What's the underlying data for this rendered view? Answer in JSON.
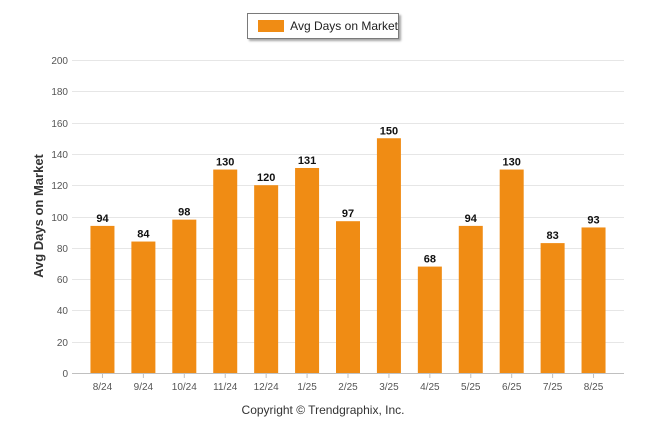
{
  "chart_data": {
    "type": "bar",
    "categories": [
      "8/24",
      "9/24",
      "10/24",
      "11/24",
      "12/24",
      "1/25",
      "2/25",
      "3/25",
      "4/25",
      "5/25",
      "6/25",
      "7/25",
      "8/25"
    ],
    "series": [
      {
        "name": "Avg Days on Market",
        "values": [
          94,
          84,
          98,
          130,
          120,
          131,
          97,
          150,
          68,
          94,
          130,
          83,
          93
        ]
      }
    ],
    "ylabel": "Avg Days on Market",
    "xlabel": "",
    "ylim": [
      0,
      200
    ],
    "yticks": [
      0,
      20,
      40,
      60,
      80,
      100,
      120,
      140,
      160,
      180,
      200
    ],
    "grid": true,
    "legend": "top-center",
    "bar_color": "#f08c14"
  },
  "footer": {
    "copyright": "Copyright © Trendgraphix, Inc."
  }
}
